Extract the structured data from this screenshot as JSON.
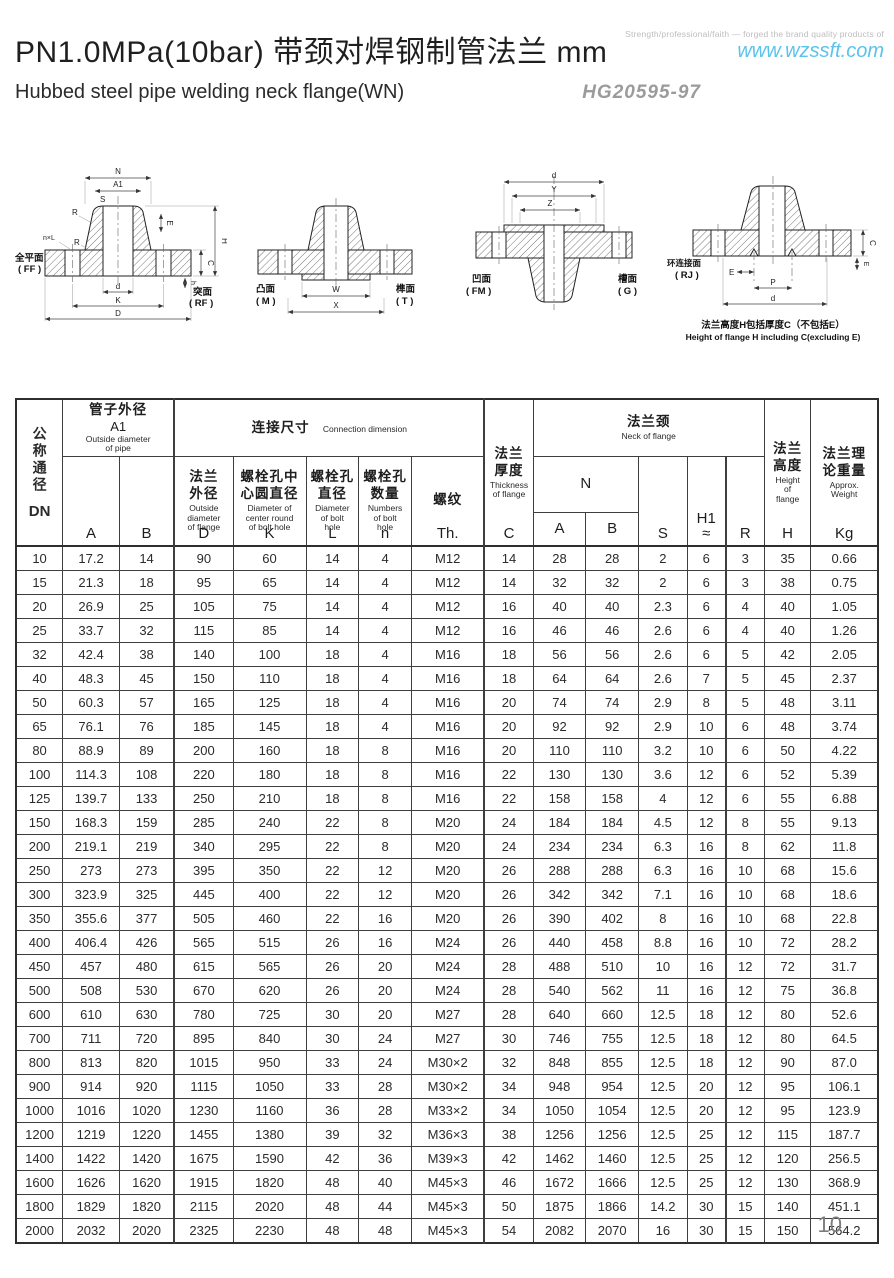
{
  "header": {
    "tagline": "Strength/professional/faith — forged the brand quality products of",
    "website": "www.wzssft.com",
    "title": "PN1.0MPa(10bar) 带颈对焊钢制管法兰  mm",
    "subtitle": "Hubbed steel pipe welding neck flange(WN)",
    "standard": "HG20595-97"
  },
  "diagrams": {
    "ffrf": {
      "dim_n": "N",
      "dim_a1": "A1",
      "dim_s": "S",
      "dim_r_top": "R",
      "dim_r_bottom": "R",
      "dim_nxl": "n×L",
      "dim_e": "E",
      "dim_h_total": "H",
      "dim_c": "C",
      "dim_h_small": "h",
      "dim_d": "d",
      "dim_k": "K",
      "dim_big_d": "D",
      "face_left_cn": "全平面",
      "face_left_code": "( FF )",
      "face_right_cn": "突面",
      "face_right_code": "( RF )"
    },
    "mt": {
      "dim_w": "W",
      "dim_x": "X",
      "face_left_cn": "凸面",
      "face_left_code": "( M )",
      "face_right_cn": "榫面",
      "face_right_code": "( T )"
    },
    "fmg": {
      "dim_d": "d",
      "dim_y": "Y",
      "dim_z": "Z",
      "face_left_cn": "凹面",
      "face_left_code": "( FM )",
      "face_right_cn": "槽面",
      "face_right_code": "( G )"
    },
    "rj": {
      "dim_e": "E",
      "dim_p": "P",
      "dim_d": "d",
      "dim_c": "C",
      "dim_e2": "E",
      "face_left_cn": "环连接面",
      "face_left_code": "( RJ )",
      "caption_cn": "法兰高度H包括厚度C（不包括E）",
      "caption_en": "Height of flange H including C(excluding E)"
    }
  },
  "table": {
    "header": {
      "dn_cn": "公称通径",
      "dn_en": "DN",
      "pipe_cn": "管子外径",
      "pipe_sym": "A1",
      "pipe_en": "Outside diameter\nof pipe",
      "conn_cn": "连接尺寸",
      "conn_en": "Connection dimension",
      "d_cn": "法兰\n外径",
      "d_en": "Outside\ndiameter\nof flange",
      "d_letter": "D",
      "k_cn": "螺栓孔中\n心圆直径",
      "k_en": "Diameter of\ncenter round\nof bolt hole",
      "k_letter": "K",
      "l_cn": "螺栓孔\n直径",
      "l_en": "Diameter\nof bolt\nhole",
      "l_letter": "L",
      "n_cn": "螺栓孔\n数量",
      "n_en": "Numbers\nof bolt\nhole",
      "n_letter": "n",
      "th_cn": "螺纹",
      "th_letter": "Th.",
      "c_cn": "法兰\n厚度",
      "c_en": "Thickness\nof flange",
      "c_letter": "C",
      "neck_cn": "法兰颈",
      "neck_en": "Neck of flange",
      "neck_n": "N",
      "neck_a": "A",
      "neck_b": "B",
      "neck_s": "S",
      "neck_h1": "H1",
      "neck_h1_approx": "≈",
      "neck_r": "R",
      "h_cn": "法兰\n高度",
      "h_en": "Height\nof\nflange",
      "h_letter": "H",
      "kg_cn": "法兰理\n论重量",
      "kg_en": "Approx.\nWeight",
      "kg_letter": "Kg",
      "a_letter": "A",
      "b_letter": "B"
    },
    "rows": [
      [
        "10",
        "17.2",
        "14",
        "90",
        "60",
        "14",
        "4",
        "M12",
        "14",
        "28",
        "28",
        "2",
        "6",
        "3",
        "35",
        "0.66"
      ],
      [
        "15",
        "21.3",
        "18",
        "95",
        "65",
        "14",
        "4",
        "M12",
        "14",
        "32",
        "32",
        "2",
        "6",
        "3",
        "38",
        "0.75"
      ],
      [
        "20",
        "26.9",
        "25",
        "105",
        "75",
        "14",
        "4",
        "M12",
        "16",
        "40",
        "40",
        "2.3",
        "6",
        "4",
        "40",
        "1.05"
      ],
      [
        "25",
        "33.7",
        "32",
        "115",
        "85",
        "14",
        "4",
        "M12",
        "16",
        "46",
        "46",
        "2.6",
        "6",
        "4",
        "40",
        "1.26"
      ],
      [
        "32",
        "42.4",
        "38",
        "140",
        "100",
        "18",
        "4",
        "M16",
        "18",
        "56",
        "56",
        "2.6",
        "6",
        "5",
        "42",
        "2.05"
      ],
      [
        "40",
        "48.3",
        "45",
        "150",
        "110",
        "18",
        "4",
        "M16",
        "18",
        "64",
        "64",
        "2.6",
        "7",
        "5",
        "45",
        "2.37"
      ],
      [
        "50",
        "60.3",
        "57",
        "165",
        "125",
        "18",
        "4",
        "M16",
        "20",
        "74",
        "74",
        "2.9",
        "8",
        "5",
        "48",
        "3.11"
      ],
      [
        "65",
        "76.1",
        "76",
        "185",
        "145",
        "18",
        "4",
        "M16",
        "20",
        "92",
        "92",
        "2.9",
        "10",
        "6",
        "48",
        "3.74"
      ],
      [
        "80",
        "88.9",
        "89",
        "200",
        "160",
        "18",
        "8",
        "M16",
        "20",
        "110",
        "110",
        "3.2",
        "10",
        "6",
        "50",
        "4.22"
      ],
      [
        "100",
        "114.3",
        "108",
        "220",
        "180",
        "18",
        "8",
        "M16",
        "22",
        "130",
        "130",
        "3.6",
        "12",
        "6",
        "52",
        "5.39"
      ],
      [
        "125",
        "139.7",
        "133",
        "250",
        "210",
        "18",
        "8",
        "M16",
        "22",
        "158",
        "158",
        "4",
        "12",
        "6",
        "55",
        "6.88"
      ],
      [
        "150",
        "168.3",
        "159",
        "285",
        "240",
        "22",
        "8",
        "M20",
        "24",
        "184",
        "184",
        "4.5",
        "12",
        "8",
        "55",
        "9.13"
      ],
      [
        "200",
        "219.1",
        "219",
        "340",
        "295",
        "22",
        "8",
        "M20",
        "24",
        "234",
        "234",
        "6.3",
        "16",
        "8",
        "62",
        "11.8"
      ],
      [
        "250",
        "273",
        "273",
        "395",
        "350",
        "22",
        "12",
        "M20",
        "26",
        "288",
        "288",
        "6.3",
        "16",
        "10",
        "68",
        "15.6"
      ],
      [
        "300",
        "323.9",
        "325",
        "445",
        "400",
        "22",
        "12",
        "M20",
        "26",
        "342",
        "342",
        "7.1",
        "16",
        "10",
        "68",
        "18.6"
      ],
      [
        "350",
        "355.6",
        "377",
        "505",
        "460",
        "22",
        "16",
        "M20",
        "26",
        "390",
        "402",
        "8",
        "16",
        "10",
        "68",
        "22.8"
      ],
      [
        "400",
        "406.4",
        "426",
        "565",
        "515",
        "26",
        "16",
        "M24",
        "26",
        "440",
        "458",
        "8.8",
        "16",
        "10",
        "72",
        "28.2"
      ],
      [
        "450",
        "457",
        "480",
        "615",
        "565",
        "26",
        "20",
        "M24",
        "28",
        "488",
        "510",
        "10",
        "16",
        "12",
        "72",
        "31.7"
      ],
      [
        "500",
        "508",
        "530",
        "670",
        "620",
        "26",
        "20",
        "M24",
        "28",
        "540",
        "562",
        "11",
        "16",
        "12",
        "75",
        "36.8"
      ],
      [
        "600",
        "610",
        "630",
        "780",
        "725",
        "30",
        "20",
        "M27",
        "28",
        "640",
        "660",
        "12.5",
        "18",
        "12",
        "80",
        "52.6"
      ],
      [
        "700",
        "711",
        "720",
        "895",
        "840",
        "30",
        "24",
        "M27",
        "30",
        "746",
        "755",
        "12.5",
        "18",
        "12",
        "80",
        "64.5"
      ],
      [
        "800",
        "813",
        "820",
        "1015",
        "950",
        "33",
        "24",
        "M30×2",
        "32",
        "848",
        "855",
        "12.5",
        "18",
        "12",
        "90",
        "87.0"
      ],
      [
        "900",
        "914",
        "920",
        "1115",
        "1050",
        "33",
        "28",
        "M30×2",
        "34",
        "948",
        "954",
        "12.5",
        "20",
        "12",
        "95",
        "106.1"
      ],
      [
        "1000",
        "1016",
        "1020",
        "1230",
        "1160",
        "36",
        "28",
        "M33×2",
        "34",
        "1050",
        "1054",
        "12.5",
        "20",
        "12",
        "95",
        "123.9"
      ],
      [
        "1200",
        "1219",
        "1220",
        "1455",
        "1380",
        "39",
        "32",
        "M36×3",
        "38",
        "1256",
        "1256",
        "12.5",
        "25",
        "12",
        "115",
        "187.7"
      ],
      [
        "1400",
        "1422",
        "1420",
        "1675",
        "1590",
        "42",
        "36",
        "M39×3",
        "42",
        "1462",
        "1460",
        "12.5",
        "25",
        "12",
        "120",
        "256.5"
      ],
      [
        "1600",
        "1626",
        "1620",
        "1915",
        "1820",
        "48",
        "40",
        "M45×3",
        "46",
        "1672",
        "1666",
        "12.5",
        "25",
        "12",
        "130",
        "368.9"
      ],
      [
        "1800",
        "1829",
        "1820",
        "2115",
        "2020",
        "48",
        "44",
        "M45×3",
        "50",
        "1875",
        "1866",
        "14.2",
        "30",
        "15",
        "140",
        "451.1"
      ],
      [
        "2000",
        "2032",
        "2020",
        "2325",
        "2230",
        "48",
        "48",
        "M45×3",
        "54",
        "2082",
        "2070",
        "16",
        "30",
        "15",
        "150",
        "564.2"
      ]
    ]
  },
  "footer": {
    "page_number": "10"
  }
}
